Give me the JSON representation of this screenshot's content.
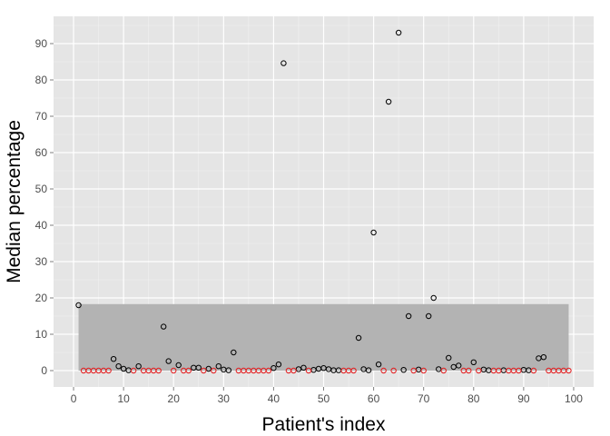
{
  "chart_data": {
    "type": "scatter",
    "xlabel": "Patient's index",
    "ylabel": "Median percentage",
    "xlim": [
      -4,
      104
    ],
    "ylim": [
      -4.5,
      97.5
    ],
    "x_ticks": [
      0,
      10,
      20,
      30,
      40,
      50,
      60,
      70,
      80,
      90,
      100
    ],
    "y_ticks": [
      0,
      10,
      20,
      30,
      40,
      50,
      60,
      70,
      80,
      90
    ],
    "grid": true,
    "background_color": "#e5e5e5",
    "grid_color": "#ffffff",
    "shaded_band": {
      "x": [
        1,
        99
      ],
      "y": [
        0,
        18.3
      ],
      "color": "#b3b3b3"
    },
    "series": [
      {
        "color": "#000000",
        "points": [
          [
            1,
            18
          ],
          [
            8,
            3.2
          ],
          [
            9,
            1.2
          ],
          [
            10,
            0.5
          ],
          [
            11,
            0.1
          ],
          [
            13,
            1.2
          ],
          [
            18,
            12.1
          ],
          [
            19,
            2.6
          ],
          [
            21,
            1.5
          ],
          [
            24,
            0.8
          ],
          [
            25,
            0.8
          ],
          [
            27,
            0.5
          ],
          [
            29,
            1.2
          ],
          [
            30,
            0.3
          ],
          [
            31,
            0.1
          ],
          [
            32,
            5
          ],
          [
            40,
            0.7
          ],
          [
            41,
            1.7
          ],
          [
            42,
            84.6
          ],
          [
            45,
            0.4
          ],
          [
            46,
            0.8
          ],
          [
            48,
            0.2
          ],
          [
            49,
            0.5
          ],
          [
            50,
            0.7
          ],
          [
            51,
            0.4
          ],
          [
            52,
            0.1
          ],
          [
            53,
            0.1
          ],
          [
            57,
            9
          ],
          [
            58,
            0.4
          ],
          [
            59,
            0.1
          ],
          [
            60,
            38
          ],
          [
            61,
            1.7
          ],
          [
            63,
            74
          ],
          [
            65,
            93
          ],
          [
            66,
            0.2
          ],
          [
            67,
            15
          ],
          [
            69,
            0.3
          ],
          [
            71,
            15
          ],
          [
            72,
            20
          ],
          [
            73,
            0.4
          ],
          [
            75,
            3.5
          ],
          [
            76,
            1
          ],
          [
            77,
            1.4
          ],
          [
            80,
            2.3
          ],
          [
            82,
            0.3
          ],
          [
            83,
            0.1
          ],
          [
            86,
            0.1
          ],
          [
            90,
            0.2
          ],
          [
            91,
            0.1
          ],
          [
            93,
            3.4
          ],
          [
            94,
            3.7
          ]
        ]
      },
      {
        "color": "#e41a1c",
        "points": [
          [
            2,
            0
          ],
          [
            3,
            0
          ],
          [
            4,
            0
          ],
          [
            5,
            0
          ],
          [
            6,
            0
          ],
          [
            7,
            0
          ],
          [
            12,
            0
          ],
          [
            14,
            0
          ],
          [
            15,
            0
          ],
          [
            16,
            0
          ],
          [
            17,
            0
          ],
          [
            20,
            0
          ],
          [
            22,
            0
          ],
          [
            23,
            0
          ],
          [
            26,
            0
          ],
          [
            28,
            0
          ],
          [
            33,
            0
          ],
          [
            34,
            0
          ],
          [
            35,
            0
          ],
          [
            36,
            0
          ],
          [
            37,
            0
          ],
          [
            38,
            0
          ],
          [
            39,
            0
          ],
          [
            43,
            0
          ],
          [
            44,
            0
          ],
          [
            47,
            0
          ],
          [
            54,
            0
          ],
          [
            55,
            0
          ],
          [
            56,
            0
          ],
          [
            62,
            0
          ],
          [
            64,
            0
          ],
          [
            68,
            0
          ],
          [
            70,
            0
          ],
          [
            74,
            0
          ],
          [
            78,
            0
          ],
          [
            79,
            0
          ],
          [
            81,
            0
          ],
          [
            84,
            0
          ],
          [
            85,
            0
          ],
          [
            87,
            0
          ],
          [
            88,
            0
          ],
          [
            89,
            0
          ],
          [
            92,
            0
          ],
          [
            95,
            0
          ],
          [
            96,
            0
          ],
          [
            97,
            0
          ],
          [
            98,
            0
          ],
          [
            99,
            0
          ]
        ]
      }
    ]
  }
}
